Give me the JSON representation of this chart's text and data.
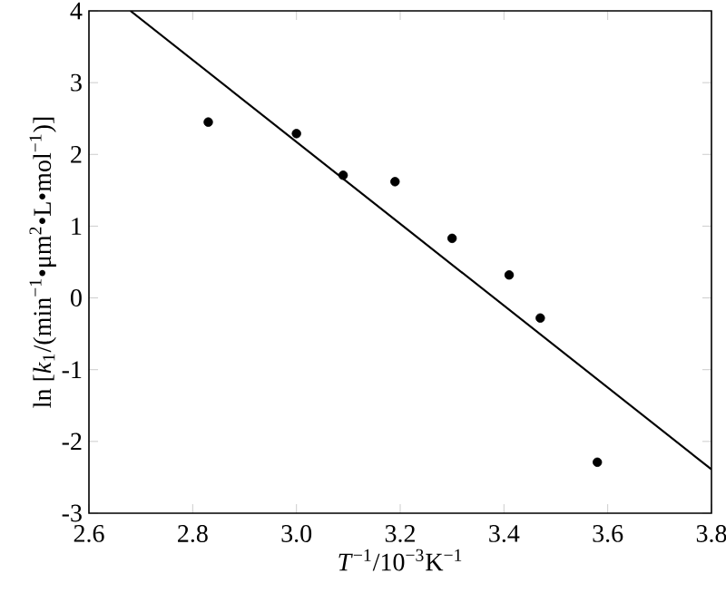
{
  "chart_data": {
    "type": "scatter",
    "xlabel": "*T*$^{−1}$/10$^{−3}$K$^{−1}$",
    "ylabel": "ln [*k*$_{1}$/(min$^{−1}$•μm$^{2}$•L•mol$^{−1}$)]",
    "series": [
      {
        "color": "#000000",
        "marker": "circle",
        "x": [
          2.83,
          3.0,
          3.09,
          3.19,
          3.3,
          3.41,
          3.47,
          3.58
        ],
        "values": [
          2.45,
          2.29,
          1.71,
          1.62,
          0.83,
          0.32,
          -0.28,
          -2.29
        ]
      },
      {
        "type": "line",
        "color": "#000000",
        "marker": "none",
        "line_style": "solid",
        "x": [
          2.68,
          3.8
        ],
        "values": [
          4.0,
          -2.39
        ]
      }
    ],
    "xlim": [
      2.6,
      3.8
    ],
    "ylim": [
      -3,
      4
    ],
    "xticks": [
      2.6,
      2.8,
      {
        "value": 3.0,
        "label": "3.0"
      },
      3.2,
      3.4,
      3.6,
      3.8
    ],
    "yticks": [
      -3,
      -2,
      -1,
      0,
      1,
      2,
      3,
      4
    ],
    "grid": false
  }
}
